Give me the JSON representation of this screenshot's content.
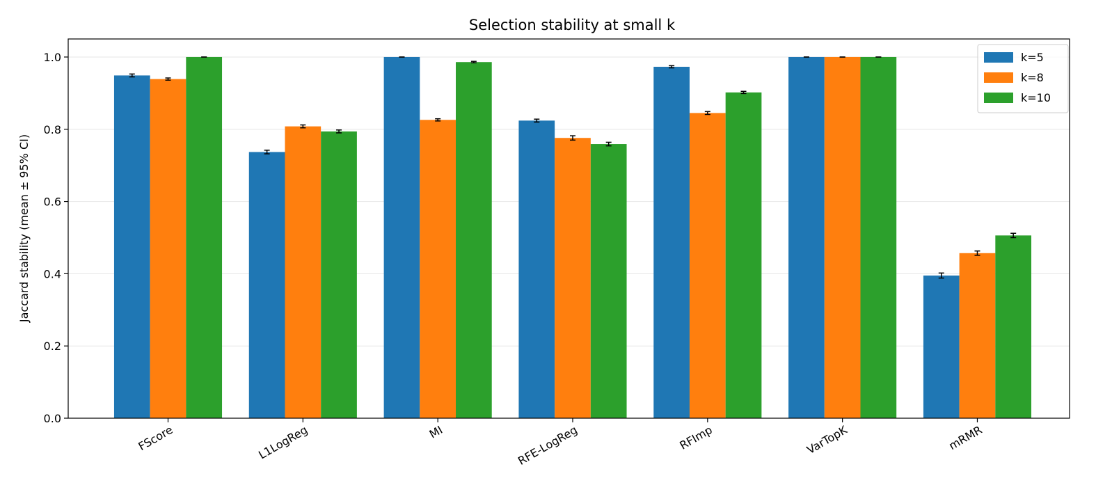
{
  "chart_data": {
    "type": "bar",
    "title": "Selection stability at small k",
    "xlabel": "",
    "ylabel": "Jaccard stability (mean ± 95% CI)",
    "ylim": [
      0,
      1.05
    ],
    "yticks": [
      0.0,
      0.2,
      0.4,
      0.6,
      0.8,
      1.0
    ],
    "ytick_labels": [
      "0.0",
      "0.2",
      "0.4",
      "0.6",
      "0.8",
      "1.0"
    ],
    "grid": "y",
    "legend_position": "top-right",
    "categories": [
      "FScore",
      "L1LogReg",
      "MI",
      "RFE-LogReg",
      "RFImp",
      "VarTopK",
      "mRMR"
    ],
    "series": [
      {
        "name": "k=5",
        "color": "#1f77b4",
        "values": [
          0.949,
          0.737,
          1.0,
          0.824,
          0.973,
          1.0,
          0.395
        ],
        "ci": [
          0.004,
          0.005,
          0.0,
          0.004,
          0.003,
          0.0,
          0.007
        ]
      },
      {
        "name": "k=8",
        "color": "#ff7f0e",
        "values": [
          0.939,
          0.808,
          0.826,
          0.776,
          0.845,
          1.0,
          0.457
        ],
        "ci": [
          0.003,
          0.004,
          0.003,
          0.006,
          0.004,
          0.0,
          0.006
        ]
      },
      {
        "name": "k=10",
        "color": "#2ca02c",
        "values": [
          1.0,
          0.794,
          0.986,
          0.759,
          0.902,
          1.0,
          0.506
        ],
        "ci": [
          0.0,
          0.004,
          0.002,
          0.005,
          0.003,
          0.0,
          0.006
        ]
      }
    ]
  }
}
